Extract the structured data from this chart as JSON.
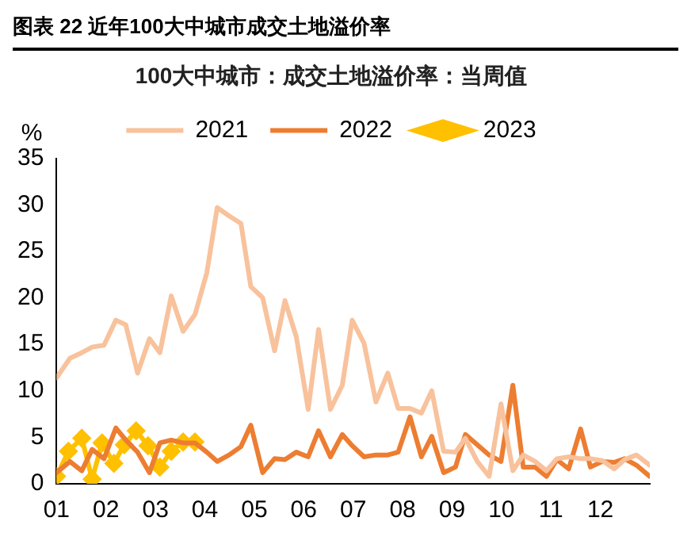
{
  "chart_data": {
    "type": "line",
    "title": "图表 22 近年100大中城市成交土地溢价率",
    "subtitle": "100大中城市：成交土地溢价率：当周值",
    "ylabel": "%",
    "x": [
      1.0,
      1.27,
      1.51,
      1.72,
      1.96,
      2.2,
      2.4,
      2.64,
      2.88,
      3.09,
      3.32,
      3.56,
      3.8,
      4.04,
      4.25,
      4.49,
      4.73,
      4.93,
      5.17,
      5.41,
      5.62,
      5.85,
      6.09,
      6.3,
      6.54,
      6.78,
      6.98,
      7.22,
      7.46,
      7.7,
      7.91,
      8.15,
      8.38,
      8.59,
      8.83,
      9.07,
      9.27,
      9.51,
      9.75,
      9.99,
      10.23,
      10.44,
      10.68,
      10.91,
      11.12,
      11.36,
      11.6,
      11.8,
      12.04,
      12.28,
      12.49,
      12.73,
      13.0
    ],
    "series": [
      {
        "name": "2021",
        "color": "#f8c29c",
        "marker": "none",
        "values": [
          11.4,
          13.5,
          14.1,
          14.7,
          14.9,
          17.6,
          17.1,
          11.9,
          15.6,
          14.1,
          20.2,
          16.4,
          18.2,
          22.7,
          29.7,
          28.8,
          28.0,
          21.2,
          20.0,
          14.3,
          19.7,
          15.8,
          8.0,
          16.6,
          8.0,
          10.6,
          17.6,
          15.1,
          8.8,
          11.9,
          8.1,
          8.1,
          7.6,
          10.0,
          3.5,
          3.4,
          4.9,
          2.4,
          0.8,
          8.6,
          1.4,
          3.1,
          2.4,
          1.4,
          2.7,
          2.9,
          2.7,
          2.7,
          2.5,
          1.6,
          2.6,
          3.1,
          2.0
        ]
      },
      {
        "name": "2022",
        "color": "#ed7d31",
        "marker": "none",
        "values": [
          1.2,
          2.4,
          1.4,
          3.7,
          2.7,
          6.0,
          4.7,
          3.4,
          1.2,
          4.4,
          4.7,
          4.4,
          4.4,
          3.4,
          2.4,
          3.1,
          4.0,
          6.3,
          1.2,
          2.7,
          2.6,
          3.4,
          2.9,
          5.7,
          2.9,
          5.3,
          4.1,
          2.9,
          3.1,
          3.1,
          3.4,
          7.2,
          2.9,
          5.1,
          1.2,
          1.8,
          5.3,
          4.2,
          3.1,
          2.4,
          10.6,
          1.8,
          1.8,
          0.8,
          2.6,
          1.6,
          5.9,
          1.8,
          2.4,
          2.3,
          2.7,
          2.0,
          0.8
        ]
      },
      {
        "name": "2023",
        "color": "#ffc000",
        "marker": "diamond",
        "x": [
          1.0,
          1.24,
          1.51,
          1.72,
          1.92,
          2.16,
          2.37,
          2.61,
          2.85,
          3.09,
          3.32,
          3.56,
          3.8
        ],
        "values": [
          0.8,
          3.5,
          4.9,
          0.5,
          4.4,
          2.2,
          4.2,
          5.7,
          4.1,
          1.8,
          3.5,
          4.5,
          4.5
        ]
      }
    ],
    "xlim": [
      1,
      13
    ],
    "xticks": [
      {
        "value": 1,
        "label": "01"
      },
      {
        "value": 2,
        "label": "02"
      },
      {
        "value": 3,
        "label": "03"
      },
      {
        "value": 4,
        "label": "04"
      },
      {
        "value": 5,
        "label": "05"
      },
      {
        "value": 6,
        "label": "06"
      },
      {
        "value": 7,
        "label": "07"
      },
      {
        "value": 8,
        "label": "08"
      },
      {
        "value": 9,
        "label": "09"
      },
      {
        "value": 10,
        "label": "10"
      },
      {
        "value": 11,
        "label": "11"
      },
      {
        "value": 12,
        "label": "12"
      }
    ],
    "ylim": [
      0,
      35
    ],
    "yticks": [
      0,
      5,
      10,
      15,
      20,
      25,
      30,
      35
    ],
    "grid": false,
    "legend": "top",
    "line_style": "solid"
  }
}
